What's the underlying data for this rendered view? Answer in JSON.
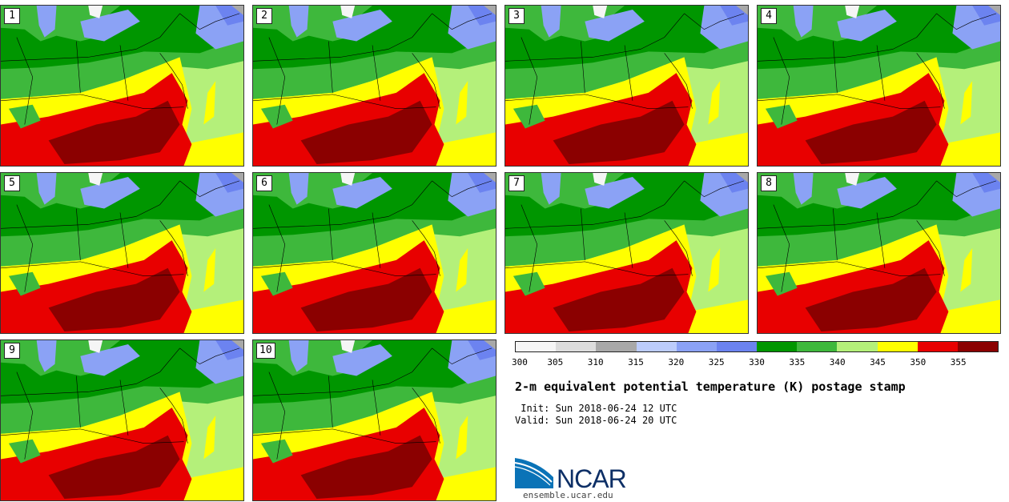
{
  "stamps": [
    {
      "label": "1"
    },
    {
      "label": "2"
    },
    {
      "label": "3"
    },
    {
      "label": "4"
    },
    {
      "label": "5"
    },
    {
      "label": "6"
    },
    {
      "label": "7"
    },
    {
      "label": "8"
    },
    {
      "label": "9"
    },
    {
      "label": "10"
    }
  ],
  "legend": {
    "colors": [
      "#f5f5f5",
      "#dcdcdc",
      "#a8a8a8",
      "#bcccfb",
      "#8ba2f5",
      "#6c83f0",
      "#009600",
      "#3eb83c",
      "#b4f07a",
      "#ffff00",
      "#e80000",
      "#8b0000"
    ],
    "ticks": [
      "300",
      "305",
      "310",
      "315",
      "320",
      "325",
      "330",
      "335",
      "340",
      "345",
      "350",
      "355"
    ]
  },
  "title": "2-m equivalent potential temperature (K) postage stamp",
  "init_line": " Init: Sun 2018-06-24 12 UTC",
  "valid_line": "Valid: Sun 2018-06-24 20 UTC",
  "logo": {
    "text": "NCAR",
    "text_color": "#0d2f66",
    "swoosh_color": "#0a73b7"
  },
  "url": "ensemble.ucar.edu"
}
